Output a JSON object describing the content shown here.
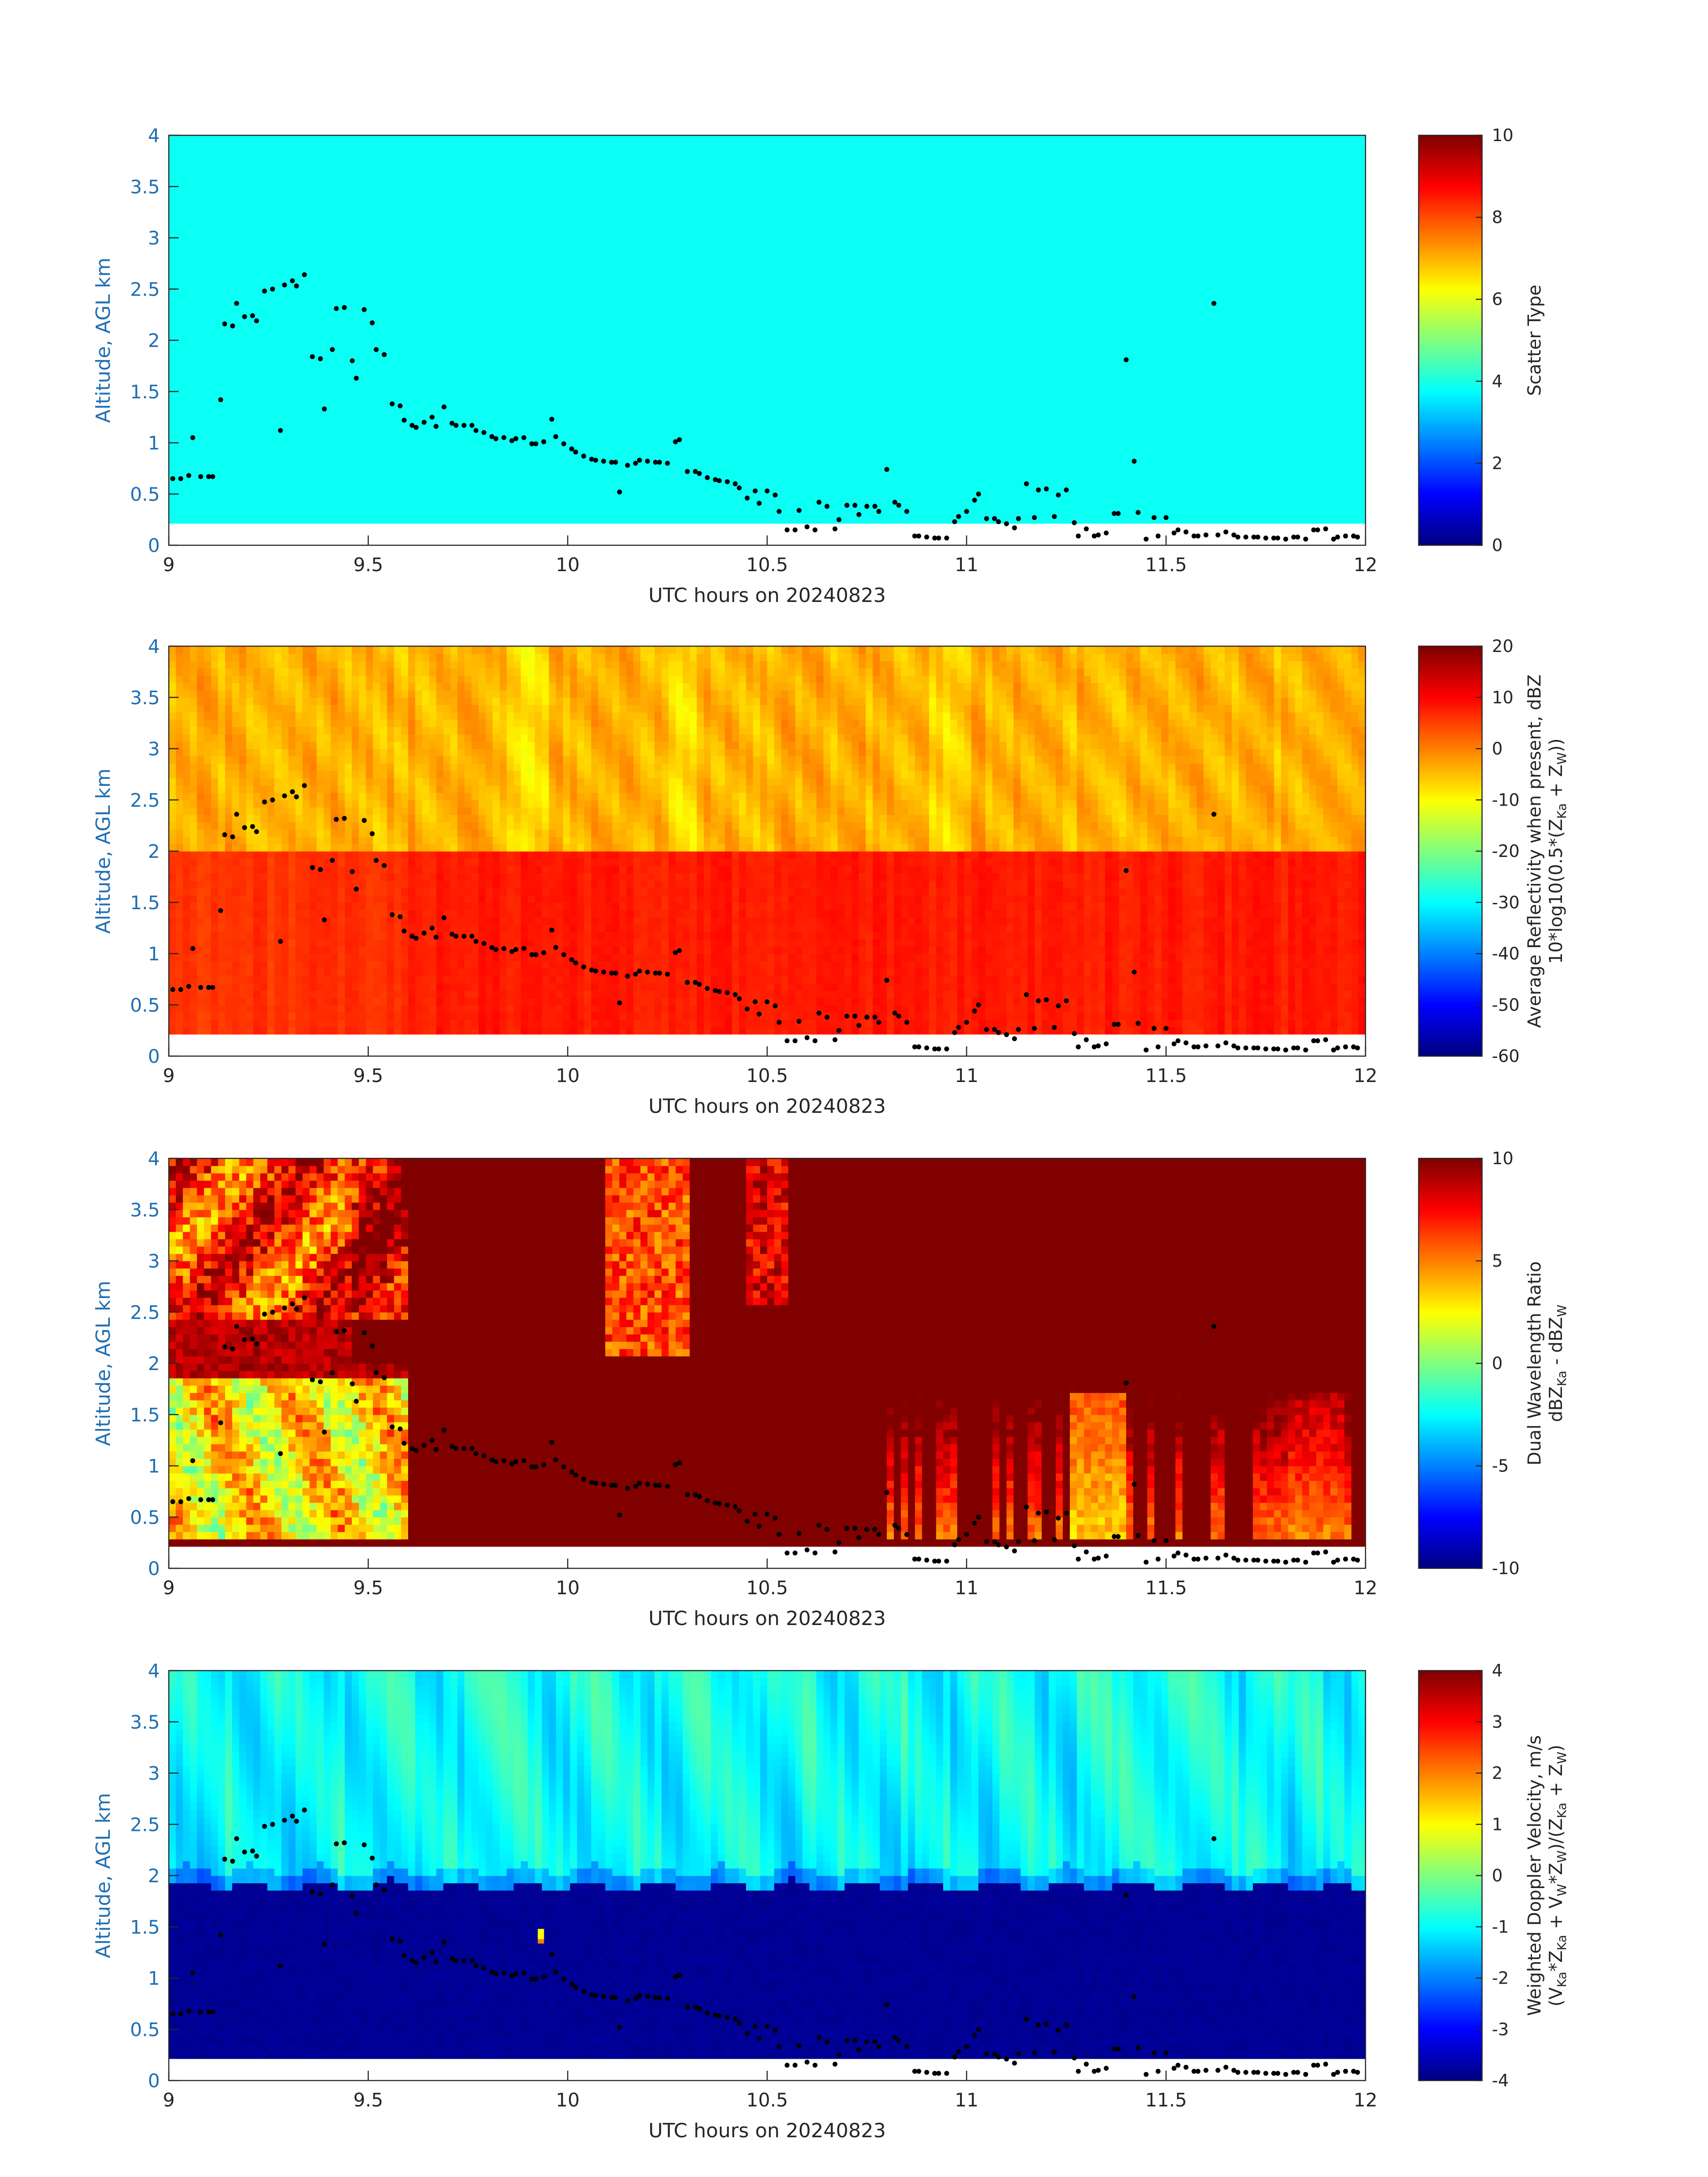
{
  "chart_data": [
    {
      "type": "heatmap",
      "ylabel": "Altitude, AGL km",
      "xlabel": "UTC hours on 20240823",
      "xlim": [
        9,
        12
      ],
      "ylim": [
        0,
        4
      ],
      "xticks": [
        "9",
        "9.5",
        "10",
        "10.5",
        "11",
        "11.5",
        "12"
      ],
      "yticks": [
        "0",
        "0.5",
        "1",
        "1.5",
        "2",
        "2.5",
        "3",
        "3.5",
        "4"
      ],
      "colorbar": {
        "label_lines": [
          "Scatter Type"
        ],
        "range": [
          0,
          10
        ],
        "ticks": [
          "0",
          "2",
          "4",
          "6",
          "8",
          "10"
        ]
      },
      "field": "scatter",
      "colormap": "jet"
    },
    {
      "type": "heatmap",
      "ylabel": "Altitude, AGL km",
      "xlabel": "UTC hours on 20240823",
      "xlim": [
        9,
        12
      ],
      "ylim": [
        0,
        4
      ],
      "xticks": [
        "9",
        "9.5",
        "10",
        "10.5",
        "11",
        "11.5",
        "12"
      ],
      "yticks": [
        "0",
        "0.5",
        "1",
        "1.5",
        "2",
        "2.5",
        "3",
        "3.5",
        "4"
      ],
      "colorbar": {
        "label_lines": [
          "Average Reflectivity when present, dBZ",
          "10*log10(0.5*(Z_Ka + Z_W))"
        ],
        "range": [
          -60,
          20
        ],
        "ticks": [
          "-60",
          "-50",
          "-40",
          "-30",
          "-20",
          "-10",
          "0",
          "10",
          "20"
        ]
      },
      "field": "reflectivity",
      "colormap": "jet"
    },
    {
      "type": "heatmap",
      "ylabel": "Altitude, AGL km",
      "xlabel": "UTC hours on 20240823",
      "xlim": [
        9,
        12
      ],
      "ylim": [
        0,
        4
      ],
      "xticks": [
        "9",
        "9.5",
        "10",
        "10.5",
        "11",
        "11.5",
        "12"
      ],
      "yticks": [
        "0",
        "0.5",
        "1",
        "1.5",
        "2",
        "2.5",
        "3",
        "3.5",
        "4"
      ],
      "colorbar": {
        "label_lines": [
          "Dual Wavelength Ratio",
          "dBZ_Ka - dBZ_W"
        ],
        "range": [
          -10,
          10
        ],
        "ticks": [
          "-10",
          "-5",
          "0",
          "5",
          "10"
        ]
      },
      "field": "dwr",
      "colormap": "jet"
    },
    {
      "type": "heatmap",
      "ylabel": "Altitude, AGL km",
      "xlabel": "UTC hours on 20240823",
      "xlim": [
        9,
        12
      ],
      "ylim": [
        0,
        4
      ],
      "xticks": [
        "9",
        "9.5",
        "10",
        "10.5",
        "11",
        "11.5",
        "12"
      ],
      "yticks": [
        "0",
        "0.5",
        "1",
        "1.5",
        "2",
        "2.5",
        "3",
        "3.5",
        "4"
      ],
      "colorbar": {
        "label_lines": [
          "Weighted Doppler Velocity, m/s",
          "(V_Ka*Z_Ka + V_W*Z_W)/(Z_Ka + Z_W)"
        ],
        "range": [
          -4,
          4
        ],
        "ticks": [
          "-4",
          "-3",
          "-2",
          "-1",
          "0",
          "1",
          "2",
          "3",
          "4"
        ]
      },
      "field": "velocity",
      "colormap": "jet"
    }
  ],
  "cloud_base_points": [
    [
      9.01,
      0.65
    ],
    [
      9.03,
      0.65
    ],
    [
      9.05,
      0.68
    ],
    [
      9.06,
      1.05
    ],
    [
      9.08,
      0.67
    ],
    [
      9.1,
      0.67
    ],
    [
      9.11,
      0.67
    ],
    [
      9.13,
      1.42
    ],
    [
      9.14,
      2.16
    ],
    [
      9.16,
      2.14
    ],
    [
      9.17,
      2.36
    ],
    [
      9.19,
      2.23
    ],
    [
      9.21,
      2.24
    ],
    [
      9.22,
      2.19
    ],
    [
      9.24,
      2.48
    ],
    [
      9.26,
      2.5
    ],
    [
      9.28,
      1.12
    ],
    [
      9.29,
      2.54
    ],
    [
      9.31,
      2.58
    ],
    [
      9.32,
      2.53
    ],
    [
      9.34,
      2.64
    ],
    [
      9.36,
      1.84
    ],
    [
      9.38,
      1.82
    ],
    [
      9.39,
      1.33
    ],
    [
      9.41,
      1.91
    ],
    [
      9.42,
      2.31
    ],
    [
      9.44,
      2.32
    ],
    [
      9.46,
      1.8
    ],
    [
      9.47,
      1.63
    ],
    [
      9.49,
      2.3
    ],
    [
      9.51,
      2.17
    ],
    [
      9.52,
      1.91
    ],
    [
      9.54,
      1.86
    ],
    [
      9.56,
      1.38
    ],
    [
      9.58,
      1.36
    ],
    [
      9.59,
      1.22
    ],
    [
      9.61,
      1.17
    ],
    [
      9.62,
      1.15
    ],
    [
      9.64,
      1.2
    ],
    [
      9.66,
      1.25
    ],
    [
      9.67,
      1.16
    ],
    [
      9.69,
      1.35
    ],
    [
      9.71,
      1.19
    ],
    [
      9.72,
      1.17
    ],
    [
      9.74,
      1.17
    ],
    [
      9.76,
      1.17
    ],
    [
      9.77,
      1.12
    ],
    [
      9.79,
      1.1
    ],
    [
      9.81,
      1.06
    ],
    [
      9.82,
      1.04
    ],
    [
      9.84,
      1.05
    ],
    [
      9.86,
      1.02
    ],
    [
      9.87,
      1.04
    ],
    [
      9.89,
      1.05
    ],
    [
      9.91,
      0.99
    ],
    [
      9.92,
      0.99
    ],
    [
      9.94,
      1.01
    ],
    [
      9.96,
      1.23
    ],
    [
      9.97,
      1.06
    ],
    [
      9.99,
      0.99
    ],
    [
      10.01,
      0.94
    ],
    [
      10.02,
      0.91
    ],
    [
      10.04,
      0.87
    ],
    [
      10.06,
      0.84
    ],
    [
      10.07,
      0.83
    ],
    [
      10.09,
      0.82
    ],
    [
      10.11,
      0.81
    ],
    [
      10.12,
      0.81
    ],
    [
      10.13,
      0.52
    ],
    [
      10.15,
      0.78
    ],
    [
      10.17,
      0.8
    ],
    [
      10.18,
      0.83
    ],
    [
      10.2,
      0.82
    ],
    [
      10.22,
      0.81
    ],
    [
      10.23,
      0.81
    ],
    [
      10.25,
      0.8
    ],
    [
      10.27,
      1.01
    ],
    [
      10.28,
      1.03
    ],
    [
      10.3,
      0.72
    ],
    [
      10.32,
      0.72
    ],
    [
      10.33,
      0.7
    ],
    [
      10.35,
      0.66
    ],
    [
      10.37,
      0.64
    ],
    [
      10.38,
      0.63
    ],
    [
      10.4,
      0.62
    ],
    [
      10.42,
      0.6
    ],
    [
      10.43,
      0.56
    ],
    [
      10.45,
      0.46
    ],
    [
      10.47,
      0.53
    ],
    [
      10.48,
      0.41
    ],
    [
      10.5,
      0.53
    ],
    [
      10.52,
      0.49
    ],
    [
      10.53,
      0.33
    ],
    [
      10.55,
      0.15
    ],
    [
      10.57,
      0.15
    ],
    [
      10.58,
      0.34
    ],
    [
      10.6,
      0.18
    ],
    [
      10.62,
      0.15
    ],
    [
      10.63,
      0.42
    ],
    [
      10.65,
      0.38
    ],
    [
      10.67,
      0.16
    ],
    [
      10.68,
      0.25
    ],
    [
      10.7,
      0.39
    ],
    [
      10.72,
      0.39
    ],
    [
      10.73,
      0.3
    ],
    [
      10.75,
      0.38
    ],
    [
      10.77,
      0.38
    ],
    [
      10.78,
      0.33
    ],
    [
      10.8,
      0.74
    ],
    [
      10.82,
      0.42
    ],
    [
      10.83,
      0.39
    ],
    [
      10.85,
      0.33
    ],
    [
      10.87,
      0.09
    ],
    [
      10.88,
      0.09
    ],
    [
      10.9,
      0.08
    ],
    [
      10.92,
      0.07
    ],
    [
      10.93,
      0.07
    ],
    [
      10.95,
      0.07
    ],
    [
      10.97,
      0.23
    ],
    [
      10.98,
      0.28
    ],
    [
      11.0,
      0.33
    ],
    [
      11.02,
      0.44
    ],
    [
      11.03,
      0.5
    ],
    [
      11.05,
      0.26
    ],
    [
      11.07,
      0.26
    ],
    [
      11.08,
      0.23
    ],
    [
      11.1,
      0.21
    ],
    [
      11.12,
      0.17
    ],
    [
      11.13,
      0.26
    ],
    [
      11.15,
      0.6
    ],
    [
      11.17,
      0.27
    ],
    [
      11.18,
      0.54
    ],
    [
      11.2,
      0.55
    ],
    [
      11.22,
      0.28
    ],
    [
      11.23,
      0.49
    ],
    [
      11.25,
      0.54
    ],
    [
      11.27,
      0.22
    ],
    [
      11.28,
      0.09
    ],
    [
      11.3,
      0.16
    ],
    [
      11.32,
      0.09
    ],
    [
      11.33,
      0.1
    ],
    [
      11.35,
      0.12
    ],
    [
      11.37,
      0.31
    ],
    [
      11.38,
      0.31
    ],
    [
      11.4,
      1.81
    ],
    [
      11.42,
      0.82
    ],
    [
      11.43,
      0.32
    ],
    [
      11.45,
      0.06
    ],
    [
      11.47,
      0.27
    ],
    [
      11.48,
      0.09
    ],
    [
      11.5,
      0.27
    ],
    [
      11.52,
      0.12
    ],
    [
      11.53,
      0.15
    ],
    [
      11.55,
      0.13
    ],
    [
      11.57,
      0.09
    ],
    [
      11.58,
      0.09
    ],
    [
      11.6,
      0.1
    ],
    [
      11.62,
      2.36
    ],
    [
      11.63,
      0.1
    ],
    [
      11.65,
      0.13
    ],
    [
      11.67,
      0.1
    ],
    [
      11.68,
      0.08
    ],
    [
      11.7,
      0.08
    ],
    [
      11.72,
      0.08
    ],
    [
      11.73,
      0.08
    ],
    [
      11.75,
      0.07
    ],
    [
      11.77,
      0.07
    ],
    [
      11.78,
      0.07
    ],
    [
      11.8,
      0.06
    ],
    [
      11.82,
      0.08
    ],
    [
      11.83,
      0.08
    ],
    [
      11.85,
      0.06
    ],
    [
      11.87,
      0.15
    ],
    [
      11.88,
      0.15
    ],
    [
      11.9,
      0.16
    ],
    [
      11.92,
      0.06
    ],
    [
      11.93,
      0.08
    ],
    [
      11.95,
      0.09
    ],
    [
      11.97,
      0.09
    ],
    [
      11.98,
      0.08
    ]
  ]
}
